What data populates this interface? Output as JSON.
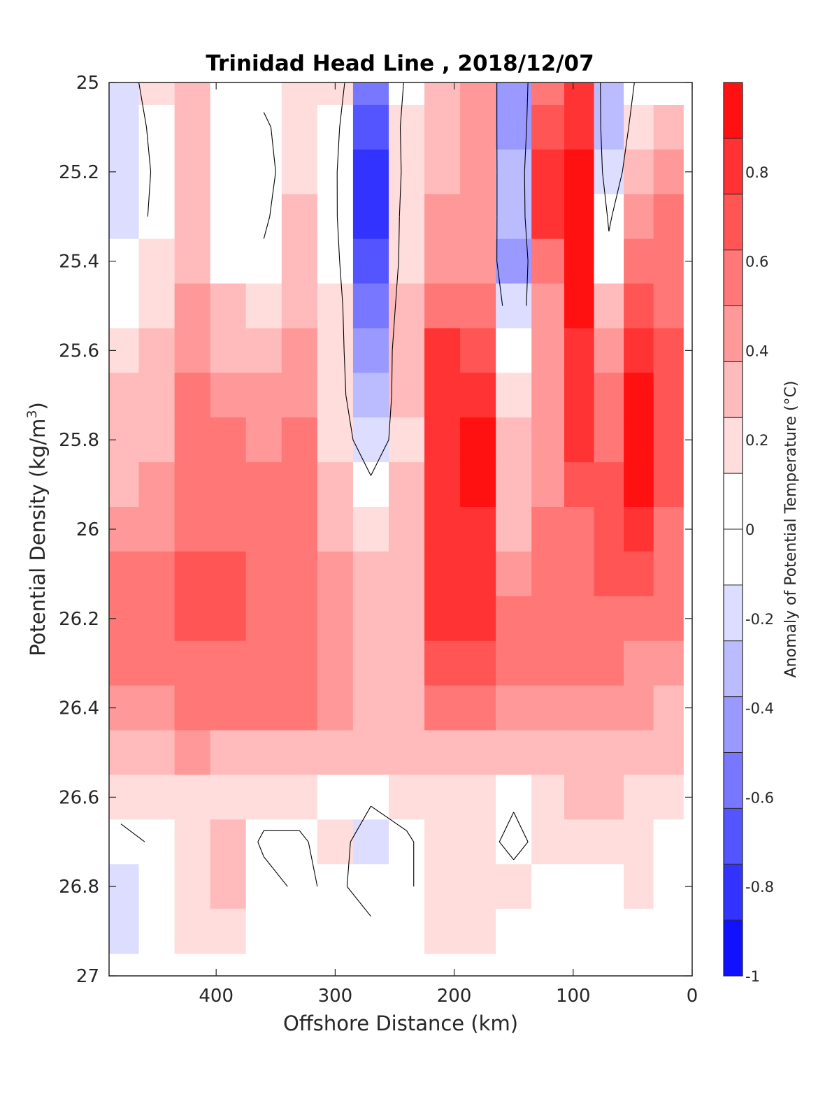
{
  "chart_data": {
    "type": "heatmap",
    "title": "Trinidad Head Line , 2018/12/07",
    "xlabel": "Offshore Distance (km)",
    "ylabel": "Potential Density (kg/m3)",
    "ylabel_main": "Potential Density (kg/m",
    "ylabel_sup": "3",
    "ylabel_close": ")",
    "colorbar_label": "Anomaly of Potential Temperature (°C)",
    "xlim": [
      490,
      0
    ],
    "ylim": [
      25,
      27
    ],
    "x_reversed": true,
    "y_reversed": true,
    "xticks": [
      400,
      300,
      200,
      100,
      0
    ],
    "xtick_labels": [
      "400",
      "300",
      "200",
      "100",
      "0"
    ],
    "yticks": [
      25,
      25.2,
      25.4,
      25.6,
      25.8,
      26,
      26.2,
      26.4,
      26.6,
      26.8,
      27
    ],
    "ytick_labels": [
      "25",
      "25.2",
      "25.4",
      "25.6",
      "25.8",
      "26",
      "26.2",
      "26.4",
      "26.6",
      "26.8",
      "27"
    ],
    "clim": [
      -1,
      1
    ],
    "colorbar_ticks": [
      0.8,
      0.6,
      0.4,
      0.2,
      0,
      -0.2,
      -0.4,
      -0.6,
      -0.8,
      -1
    ],
    "colorbar_tick_labels": [
      "0.8",
      "0.6",
      "0.4",
      "0.2",
      "0",
      "-0.2",
      "-0.4",
      "-0.6",
      "-0.8",
      "-1"
    ],
    "colorbar_levels": 16,
    "contour_level": 0,
    "x_grid": [
      480,
      450,
      420,
      390,
      360,
      330,
      300,
      270,
      240,
      210,
      180,
      150,
      120,
      95,
      70,
      45,
      20
    ],
    "y_grid": [
      25.0,
      25.1,
      25.2,
      25.3,
      25.4,
      25.5,
      25.6,
      25.7,
      25.8,
      25.9,
      26.0,
      26.1,
      26.2,
      26.3,
      26.4,
      26.5,
      26.6,
      26.7,
      26.8,
      26.9
    ],
    "z": [
      [
        -0.2,
        0.2,
        0.3,
        0.1,
        0.1,
        0.2,
        0.2,
        -0.55,
        0.05,
        0.35,
        0.45,
        -0.4,
        0.6,
        0.75,
        -0.3,
        0.05,
        0.05
      ],
      [
        -0.25,
        0.1,
        0.3,
        0.0,
        -0.05,
        0.2,
        0.1,
        -0.7,
        0.15,
        0.35,
        0.45,
        -0.4,
        0.7,
        0.8,
        -0.3,
        0.15,
        0.25
      ],
      [
        -0.25,
        0.05,
        0.3,
        0.0,
        -0.1,
        0.2,
        0.05,
        -0.85,
        0.15,
        0.35,
        0.4,
        -0.35,
        0.8,
        0.9,
        -0.25,
        0.3,
        0.45
      ],
      [
        -0.15,
        0.05,
        0.3,
        0.0,
        -0.05,
        0.25,
        0.05,
        -0.8,
        0.2,
        0.4,
        0.4,
        -0.35,
        0.75,
        0.95,
        -0.05,
        0.45,
        0.5
      ],
      [
        0.0,
        0.15,
        0.35,
        0.1,
        0.05,
        0.3,
        0.1,
        -0.7,
        0.2,
        0.45,
        0.45,
        -0.4,
        0.6,
        0.95,
        0.1,
        0.55,
        0.55
      ],
      [
        0.1,
        0.2,
        0.4,
        0.25,
        0.2,
        0.35,
        0.15,
        -0.55,
        0.25,
        0.6,
        0.55,
        -0.25,
        0.45,
        0.9,
        0.25,
        0.65,
        0.6
      ],
      [
        0.2,
        0.3,
        0.45,
        0.35,
        0.3,
        0.4,
        0.15,
        -0.45,
        0.3,
        0.75,
        0.65,
        0.0,
        0.4,
        0.85,
        0.4,
        0.8,
        0.65
      ],
      [
        0.25,
        0.35,
        0.5,
        0.45,
        0.4,
        0.45,
        0.15,
        -0.35,
        0.25,
        0.8,
        0.75,
        0.15,
        0.4,
        0.8,
        0.5,
        0.9,
        0.7
      ],
      [
        0.3,
        0.35,
        0.55,
        0.5,
        0.45,
        0.5,
        0.2,
        -0.2,
        0.2,
        0.85,
        0.9,
        0.25,
        0.45,
        0.75,
        0.6,
        0.95,
        0.7
      ],
      [
        0.35,
        0.4,
        0.55,
        0.55,
        0.5,
        0.5,
        0.3,
        0.05,
        0.25,
        0.8,
        0.9,
        0.3,
        0.45,
        0.65,
        0.65,
        0.9,
        0.65
      ],
      [
        0.4,
        0.45,
        0.6,
        0.6,
        0.5,
        0.5,
        0.35,
        0.15,
        0.3,
        0.75,
        0.85,
        0.35,
        0.5,
        0.6,
        0.7,
        0.8,
        0.6
      ],
      [
        0.55,
        0.6,
        0.65,
        0.65,
        0.6,
        0.5,
        0.4,
        0.25,
        0.3,
        0.75,
        0.85,
        0.4,
        0.55,
        0.6,
        0.65,
        0.65,
        0.55
      ],
      [
        0.55,
        0.6,
        0.65,
        0.65,
        0.6,
        0.55,
        0.45,
        0.35,
        0.35,
        0.75,
        0.8,
        0.5,
        0.55,
        0.6,
        0.6,
        0.55,
        0.5
      ],
      [
        0.55,
        0.55,
        0.6,
        0.6,
        0.6,
        0.55,
        0.45,
        0.35,
        0.35,
        0.65,
        0.7,
        0.5,
        0.5,
        0.55,
        0.55,
        0.45,
        0.4
      ],
      [
        0.45,
        0.45,
        0.55,
        0.5,
        0.5,
        0.5,
        0.45,
        0.35,
        0.35,
        0.55,
        0.5,
        0.45,
        0.4,
        0.45,
        0.45,
        0.4,
        0.35
      ],
      [
        0.3,
        0.3,
        0.4,
        0.35,
        0.35,
        0.35,
        0.3,
        0.3,
        0.3,
        0.35,
        0.35,
        0.35,
        0.35,
        0.35,
        0.35,
        0.3,
        0.3
      ],
      [
        0.15,
        0.15,
        0.2,
        0.2,
        0.15,
        0.15,
        0.1,
        0.05,
        0.15,
        0.2,
        0.15,
        0.05,
        0.2,
        0.25,
        0.25,
        0.2,
        0.15
      ],
      [
        -0.1,
        0.05,
        0.15,
        0.25,
        -0.05,
        -0.05,
        0.15,
        -0.2,
        -0.05,
        0.2,
        0.15,
        -0.1,
        0.15,
        0.15,
        0.15,
        0.15,
        0.1
      ],
      [
        -0.15,
        0.0,
        0.2,
        0.25,
        0.1,
        -0.05,
        0.05,
        -0.1,
        -0.05,
        0.2,
        0.15,
        0.15,
        0.1,
        0.05,
        0.1,
        0.15,
        0.05
      ],
      [
        -0.2,
        0.05,
        0.2,
        0.15,
        0.05,
        0.0,
        0.1,
        0.05,
        0.0,
        0.15,
        0.15,
        0.1,
        0.05,
        0.05,
        0.05,
        0.05,
        0.05
      ]
    ]
  }
}
